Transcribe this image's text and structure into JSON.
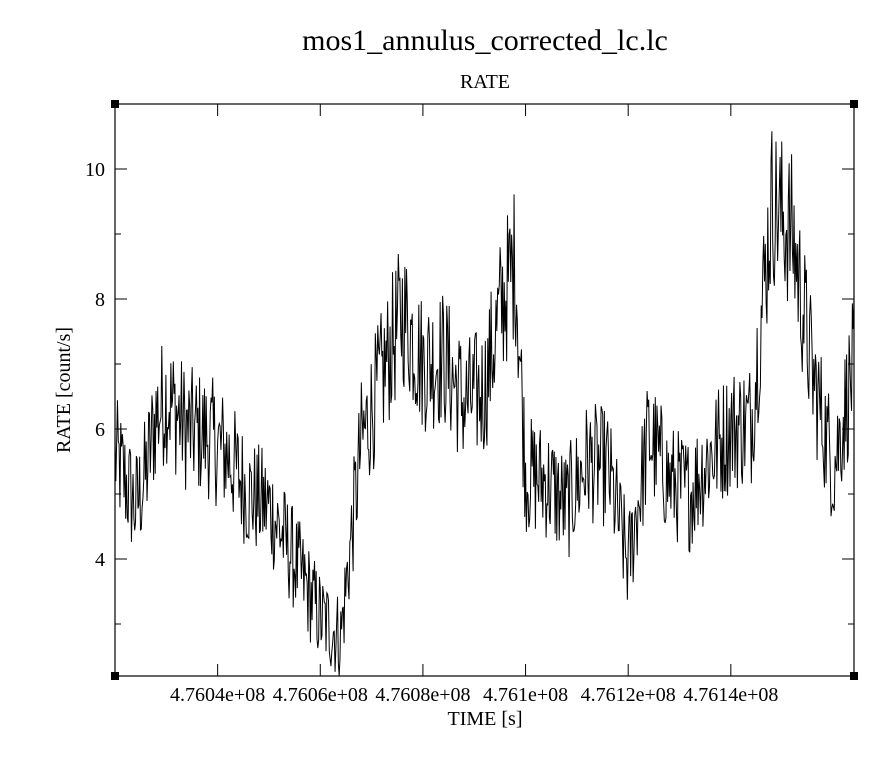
{
  "chart_data": {
    "type": "line",
    "title": "mos1_annulus_corrected_lc.lc",
    "subtitle": "RATE",
    "xlabel": "TIME [s]",
    "ylabel": "RATE [count/s]",
    "xlim": [
      476020000,
      476164000
    ],
    "ylim": [
      2.2,
      11.0
    ],
    "x_ticks": [
      476040000,
      476060000,
      476080000,
      476100000,
      476120000,
      476140000
    ],
    "x_tick_labels": [
      "4.7604e+08",
      "4.7606e+08",
      "4.7608e+08",
      "4.761e+08",
      "4.7612e+08",
      "4.7614e+08"
    ],
    "y_ticks": [
      4,
      6,
      8,
      10
    ],
    "y_tick_labels": [
      "4",
      "6",
      "8",
      "10"
    ],
    "grid": false,
    "series": [
      {
        "line_color": "#000000",
        "x": [
          476020000,
          476024000,
          476026000,
          476028000,
          476030000,
          476034000,
          476038000,
          476042000,
          476046000,
          476050000,
          476053000,
          476056000,
          476060000,
          476064000,
          476068000,
          476072000,
          476076000,
          476080000,
          476084000,
          476088000,
          476092000,
          476095000,
          476098000,
          476100000,
          476104000,
          476108000,
          476112000,
          476116000,
          476120000,
          476124000,
          476128000,
          476132000,
          476136000,
          476140000,
          476144000,
          476148000,
          476152000,
          476156000,
          476160000,
          476164000
        ],
        "y": [
          5.6,
          4.8,
          5.3,
          6.2,
          6.5,
          6.0,
          5.9,
          5.6,
          5.0,
          4.8,
          4.3,
          3.8,
          3.1,
          2.8,
          5.8,
          6.8,
          7.8,
          7.0,
          7.1,
          6.4,
          6.6,
          7.8,
          8.6,
          5.3,
          5.2,
          4.8,
          5.5,
          5.4,
          3.9,
          5.9,
          5.2,
          5.0,
          5.6,
          6.0,
          6.1,
          9.5,
          9.0,
          6.8,
          5.4,
          7.0
        ]
      }
    ]
  }
}
